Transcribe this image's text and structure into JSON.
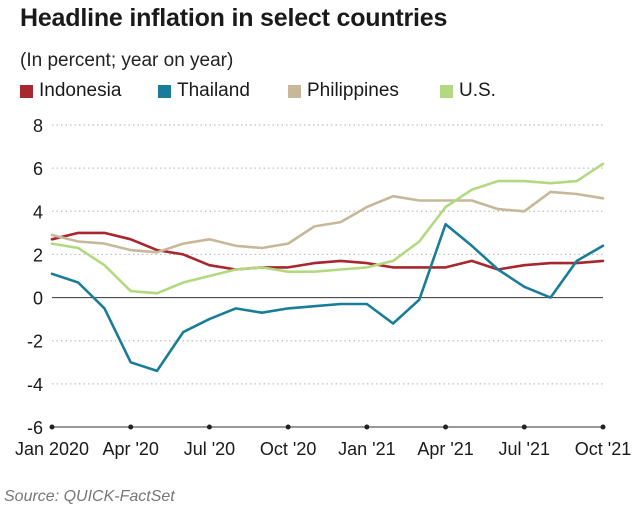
{
  "chart_data": {
    "type": "line",
    "title": "Headline inflation in select countries",
    "subtitle": "(In percent; year on year)",
    "source": "Source: QUICK-FactSet",
    "ylim": [
      -6,
      8
    ],
    "y_ticks": [
      -6,
      -4,
      -2,
      0,
      2,
      4,
      6,
      8
    ],
    "x_tick_labels": [
      "Jan 2020",
      "Apr '20",
      "Jul '20",
      "Oct '20",
      "Jan '21",
      "Apr '21",
      "Jul '21",
      "Oct '21"
    ],
    "x_tick_index": [
      0,
      3,
      6,
      9,
      12,
      15,
      18,
      21
    ],
    "x": [
      "2020-01",
      "2020-02",
      "2020-03",
      "2020-04",
      "2020-05",
      "2020-06",
      "2020-07",
      "2020-08",
      "2020-09",
      "2020-10",
      "2020-11",
      "2020-12",
      "2021-01",
      "2021-02",
      "2021-03",
      "2021-04",
      "2021-05",
      "2021-06",
      "2021-07",
      "2021-08",
      "2021-09",
      "2021-10"
    ],
    "grid": true,
    "legend_position": "top",
    "series": [
      {
        "name": "Indonesia",
        "color": "#a8262d",
        "values": [
          2.7,
          3.0,
          3.0,
          2.7,
          2.2,
          2.0,
          1.5,
          1.3,
          1.4,
          1.4,
          1.6,
          1.7,
          1.6,
          1.4,
          1.4,
          1.4,
          1.7,
          1.3,
          1.5,
          1.6,
          1.6,
          1.7
        ]
      },
      {
        "name": "Thailand",
        "color": "#1a7d98",
        "values": [
          1.1,
          0.7,
          -0.5,
          -3.0,
          -3.4,
          -1.6,
          -1.0,
          -0.5,
          -0.7,
          -0.5,
          -0.4,
          -0.3,
          -0.3,
          -1.2,
          -0.1,
          3.4,
          2.4,
          1.3,
          0.5,
          0.0,
          1.7,
          2.4
        ]
      },
      {
        "name": "Philippines",
        "color": "#c6b898",
        "values": [
          2.9,
          2.6,
          2.5,
          2.2,
          2.1,
          2.5,
          2.7,
          2.4,
          2.3,
          2.5,
          3.3,
          3.5,
          4.2,
          4.7,
          4.5,
          4.5,
          4.5,
          4.1,
          4.0,
          4.9,
          4.8,
          4.6
        ]
      },
      {
        "name": "U.S.",
        "color": "#b3d980",
        "values": [
          2.5,
          2.3,
          1.5,
          0.3,
          0.2,
          0.7,
          1.0,
          1.3,
          1.4,
          1.2,
          1.2,
          1.3,
          1.4,
          1.7,
          2.6,
          4.2,
          5.0,
          5.4,
          5.4,
          5.3,
          5.4,
          6.2
        ]
      }
    ]
  }
}
